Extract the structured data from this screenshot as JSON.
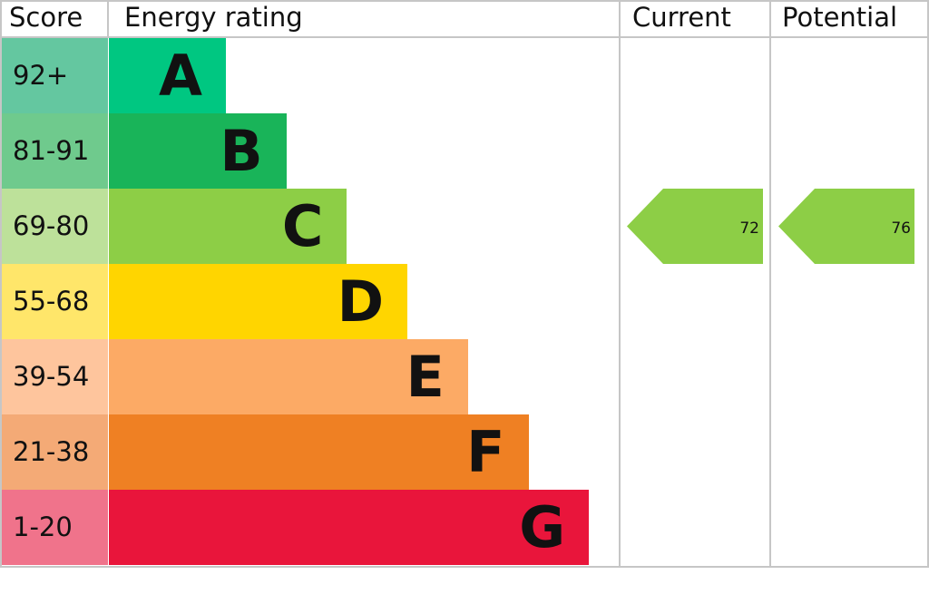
{
  "chart_data": {
    "type": "table",
    "headers": {
      "score": "Score",
      "rating": "Energy rating",
      "current": "Current",
      "potential": "Potential"
    },
    "bands": [
      {
        "letter": "A",
        "range": "92+",
        "color": "#00c781",
        "score_color": "#64c7a0"
      },
      {
        "letter": "B",
        "range": "81-91",
        "color": "#19b459",
        "score_color": "#6fca8d"
      },
      {
        "letter": "C",
        "range": "69-80",
        "color": "#8dce46",
        "score_color": "#bde19a"
      },
      {
        "letter": "D",
        "range": "55-68",
        "color": "#ffd500",
        "score_color": "#ffe66a"
      },
      {
        "letter": "E",
        "range": "39-54",
        "color": "#fcaa65",
        "score_color": "#fec59d"
      },
      {
        "letter": "F",
        "range": "21-38",
        "color": "#ef8023",
        "score_color": "#f4aa76"
      },
      {
        "letter": "G",
        "range": "1-20",
        "color": "#e9153b",
        "score_color": "#f0738b"
      }
    ],
    "current": {
      "value": "72",
      "band": "C",
      "color": "#8dce46"
    },
    "potential": {
      "value": "76",
      "band": "C",
      "color": "#8dce46"
    }
  }
}
